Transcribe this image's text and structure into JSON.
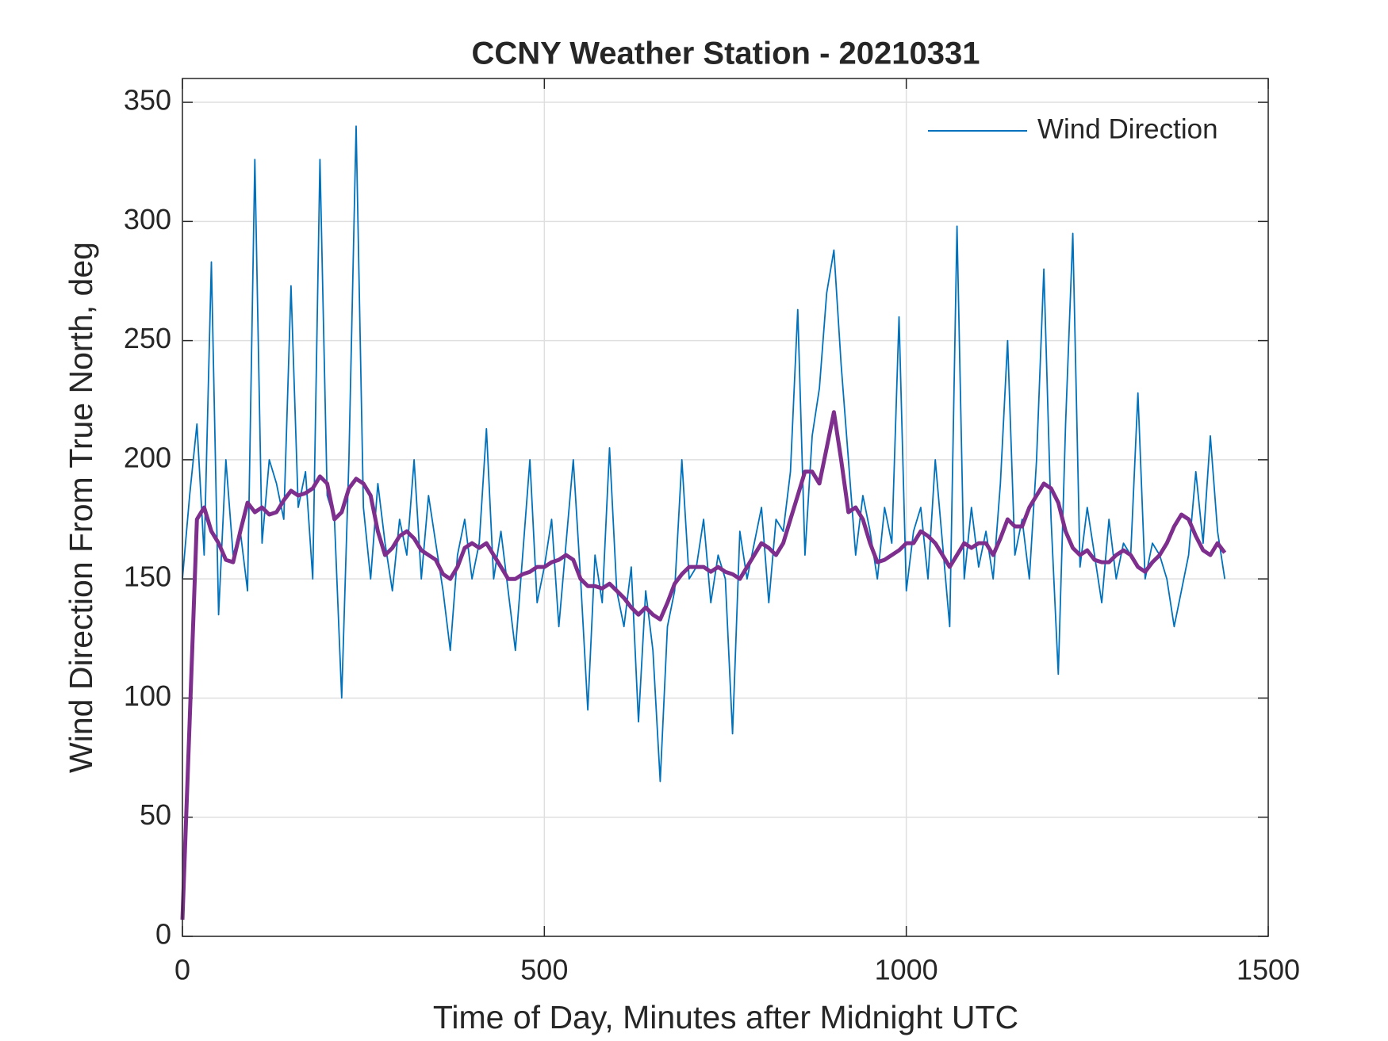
{
  "chart_data": {
    "type": "line",
    "title": "CCNY Weather Station - 20210331",
    "xlabel": "Time of Day, Minutes after Midnight UTC",
    "ylabel": "Wind Direction From True North, deg",
    "x": [
      0,
      10,
      20,
      30,
      40,
      50,
      60,
      70,
      80,
      90,
      100,
      110,
      120,
      130,
      140,
      150,
      160,
      170,
      180,
      190,
      200,
      210,
      220,
      230,
      240,
      250,
      260,
      270,
      280,
      290,
      300,
      310,
      320,
      330,
      340,
      350,
      360,
      370,
      380,
      390,
      400,
      410,
      420,
      430,
      440,
      450,
      460,
      470,
      480,
      490,
      500,
      510,
      520,
      530,
      540,
      550,
      560,
      570,
      580,
      590,
      600,
      610,
      620,
      630,
      640,
      650,
      660,
      670,
      680,
      690,
      700,
      710,
      720,
      730,
      740,
      750,
      760,
      770,
      780,
      790,
      800,
      810,
      820,
      830,
      840,
      850,
      860,
      870,
      880,
      890,
      900,
      910,
      920,
      930,
      940,
      950,
      960,
      970,
      980,
      990,
      1000,
      1010,
      1020,
      1030,
      1040,
      1050,
      1060,
      1070,
      1080,
      1090,
      1100,
      1110,
      1120,
      1130,
      1140,
      1150,
      1160,
      1170,
      1180,
      1190,
      1200,
      1210,
      1220,
      1230,
      1240,
      1250,
      1260,
      1270,
      1280,
      1290,
      1300,
      1310,
      1320,
      1330,
      1340,
      1350,
      1360,
      1370,
      1380,
      1390,
      1400,
      1410,
      1420,
      1430,
      1440
    ],
    "series": [
      {
        "name": "Wind Direction",
        "color": "#0072bd",
        "values": [
          150,
          185,
          215,
          160,
          283,
          135,
          200,
          160,
          170,
          145,
          326,
          165,
          200,
          190,
          175,
          273,
          180,
          195,
          150,
          326,
          185,
          175,
          100,
          200,
          340,
          180,
          150,
          190,
          165,
          145,
          175,
          160,
          200,
          150,
          185,
          165,
          145,
          120,
          160,
          175,
          150,
          165,
          213,
          150,
          170,
          145,
          120,
          160,
          200,
          140,
          155,
          175,
          130,
          165,
          200,
          150,
          95,
          160,
          140,
          205,
          145,
          130,
          155,
          90,
          145,
          120,
          65,
          130,
          145,
          200,
          150,
          155,
          175,
          140,
          160,
          150,
          85,
          170,
          150,
          165,
          180,
          140,
          175,
          170,
          195,
          263,
          160,
          210,
          230,
          270,
          288,
          240,
          200,
          160,
          185,
          170,
          150,
          180,
          165,
          260,
          145,
          170,
          180,
          150,
          200,
          165,
          130,
          298,
          150,
          180,
          155,
          170,
          150,
          190,
          250,
          160,
          175,
          150,
          200,
          280,
          175,
          110,
          215,
          295,
          155,
          180,
          160,
          140,
          175,
          150,
          165,
          160,
          228,
          150,
          165,
          160,
          150,
          130,
          145,
          160,
          195,
          165,
          210,
          170,
          150
        ]
      },
      {
        "color": "#7e2f8e",
        "values": [
          7,
          90,
          175,
          180,
          170,
          165,
          158,
          157,
          170,
          182,
          178,
          180,
          177,
          178,
          183,
          187,
          185,
          186,
          188,
          193,
          190,
          175,
          178,
          188,
          192,
          190,
          185,
          170,
          160,
          163,
          168,
          170,
          167,
          162,
          160,
          158,
          152,
          150,
          155,
          163,
          165,
          163,
          165,
          160,
          155,
          150,
          150,
          152,
          153,
          155,
          155,
          157,
          158,
          160,
          158,
          150,
          147,
          147,
          146,
          148,
          145,
          142,
          138,
          135,
          138,
          135,
          133,
          140,
          148,
          152,
          155,
          155,
          155,
          153,
          155,
          153,
          152,
          150,
          155,
          160,
          165,
          163,
          160,
          165,
          175,
          185,
          195,
          195,
          190,
          205,
          220,
          200,
          178,
          180,
          175,
          165,
          157,
          158,
          160,
          162,
          165,
          165,
          170,
          168,
          165,
          160,
          155,
          160,
          165,
          163,
          165,
          165,
          160,
          167,
          175,
          172,
          172,
          180,
          185,
          190,
          188,
          182,
          170,
          163,
          160,
          162,
          158,
          157,
          157,
          160,
          162,
          160,
          155,
          153,
          157,
          160,
          165,
          172,
          177,
          175,
          168,
          162,
          160,
          165,
          161
        ]
      }
    ],
    "xlim": [
      0,
      1500
    ],
    "xticks": [
      0,
      500,
      1000,
      1500
    ],
    "ylim": [
      0,
      360
    ],
    "yticks": [
      0,
      50,
      100,
      150,
      200,
      250,
      300,
      350
    ],
    "grid": true,
    "legend": "upper right"
  }
}
